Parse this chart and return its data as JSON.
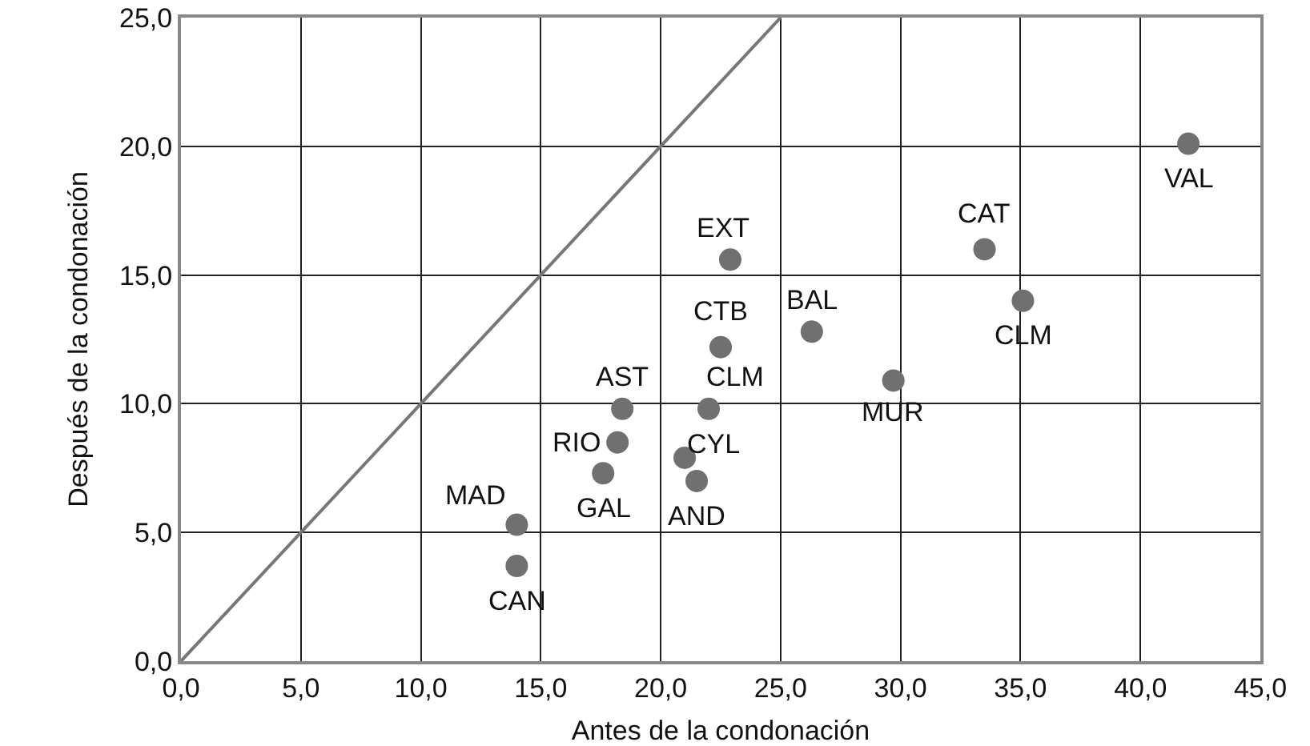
{
  "chart_data": {
    "type": "scatter",
    "xlabel": "Antes de la condonación",
    "ylabel": "Después de la condonación",
    "xlim": [
      0,
      45
    ],
    "ylim": [
      0,
      25
    ],
    "xticks": [
      {
        "value": 0,
        "label": "0,0"
      },
      {
        "value": 5,
        "label": "5,0"
      },
      {
        "value": 10,
        "label": "10,0"
      },
      {
        "value": 15,
        "label": "15,0"
      },
      {
        "value": 20,
        "label": "20,0"
      },
      {
        "value": 25,
        "label": "25,0"
      },
      {
        "value": 30,
        "label": "30,0"
      },
      {
        "value": 35,
        "label": "35,0"
      },
      {
        "value": 40,
        "label": "40,0"
      },
      {
        "value": 45,
        "label": "45,0"
      }
    ],
    "yticks": [
      {
        "value": 0,
        "label": "0,0"
      },
      {
        "value": 5,
        "label": "5,0"
      },
      {
        "value": 10,
        "label": "10,0"
      },
      {
        "value": 15,
        "label": "15,0"
      },
      {
        "value": 20,
        "label": "20,0"
      },
      {
        "value": 25,
        "label": "25,0"
      }
    ],
    "grid": true,
    "marker": "circle",
    "series": [
      {
        "type": "line",
        "marker": "none",
        "color": "#777777",
        "x": [
          0,
          25
        ],
        "values": [
          0,
          25
        ]
      },
      {
        "color": "#707070",
        "x": [
          42.0,
          33.5,
          35.1,
          26.3,
          29.7,
          22.9,
          22.5,
          22.0,
          21.0,
          21.5,
          18.4,
          18.2,
          17.6,
          14.0,
          14.0
        ],
        "values": [
          20.1,
          16.0,
          14.0,
          12.8,
          10.9,
          15.6,
          12.2,
          9.8,
          7.9,
          7.0,
          9.8,
          8.5,
          7.3,
          5.3,
          3.7
        ]
      }
    ],
    "annotations": [
      {
        "text": "VAL",
        "x": 42.0,
        "y": 20.1
      },
      {
        "text": "CAT",
        "x": 33.5,
        "y": 16.0
      },
      {
        "text": "CLM",
        "x": 35.1,
        "y": 14.0
      },
      {
        "text": "BAL",
        "x": 26.3,
        "y": 12.8
      },
      {
        "text": "MUR",
        "x": 29.7,
        "y": 10.9
      },
      {
        "text": "EXT",
        "x": 22.9,
        "y": 15.6
      },
      {
        "text": "CTB",
        "x": 22.5,
        "y": 12.2
      },
      {
        "text": "CLM",
        "x": 22.0,
        "y": 9.8
      },
      {
        "text": "CYL",
        "x": 21.0,
        "y": 7.9
      },
      {
        "text": "AND",
        "x": 21.5,
        "y": 7.0
      },
      {
        "text": "AST",
        "x": 18.4,
        "y": 9.8
      },
      {
        "text": "RIO",
        "x": 18.2,
        "y": 8.5
      },
      {
        "text": "GAL",
        "x": 17.6,
        "y": 7.3
      },
      {
        "text": "MAD",
        "x": 14.0,
        "y": 5.3
      },
      {
        "text": "CAN",
        "x": 14.0,
        "y": 3.7
      }
    ]
  }
}
